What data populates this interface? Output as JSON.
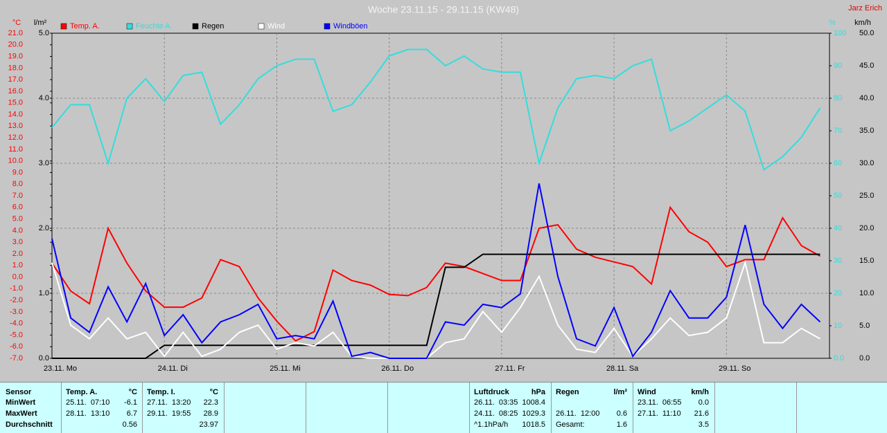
{
  "chart_data": {
    "type": "line",
    "title": "Woche 23.11.15 - 29.11.15 (KW48)",
    "author": "Jarz Erich",
    "y_label": "°C",
    "y2_label": "l/m²",
    "y3_label": "%",
    "y4_label": "km/h",
    "x": [
      0,
      4,
      8,
      12,
      16,
      20,
      24,
      28,
      32,
      36,
      40,
      44,
      48,
      52,
      56,
      60,
      64,
      68,
      72,
      76,
      80,
      84,
      88,
      92,
      96,
      100,
      104,
      108,
      112,
      116,
      120,
      124,
      128,
      132,
      136,
      140,
      144,
      148,
      152,
      156,
      160,
      164
    ],
    "xlim": [
      0,
      166
    ],
    "xticks": [
      {
        "value": 0,
        "label": "23.11. Mo"
      },
      {
        "value": 24,
        "label": "24.11. Di"
      },
      {
        "value": 48,
        "label": "25.11. Mi"
      },
      {
        "value": 72,
        "label": "26.11. Do"
      },
      {
        "value": 96,
        "label": "27.11. Fr"
      },
      {
        "value": 120,
        "label": "28.11. Sa"
      },
      {
        "value": 144,
        "label": "29.11. So"
      }
    ],
    "ylim": [
      -7,
      21
    ],
    "yticks": [
      {
        "value": -7,
        "label": "-7.0"
      },
      {
        "value": -6,
        "label": "-6.0"
      },
      {
        "value": -5,
        "label": "-5.0"
      },
      {
        "value": -4,
        "label": "-4.0"
      },
      {
        "value": -3,
        "label": "-3.0"
      },
      {
        "value": -2,
        "label": "-2.0"
      },
      {
        "value": -1,
        "label": "-1.0"
      },
      {
        "value": 0,
        "label": "0.0"
      },
      {
        "value": 1,
        "label": "1.0"
      },
      {
        "value": 2,
        "label": "2.0"
      },
      {
        "value": 3,
        "label": "3.0"
      },
      {
        "value": 4,
        "label": "4.0"
      },
      {
        "value": 5,
        "label": "5.0"
      },
      {
        "value": 6,
        "label": "6.0"
      },
      {
        "value": 7,
        "label": "7.0"
      },
      {
        "value": 8,
        "label": "8.0"
      },
      {
        "value": 9,
        "label": "9.0"
      },
      {
        "value": 10,
        "label": "10.0"
      },
      {
        "value": 11,
        "label": "11.0"
      },
      {
        "value": 12,
        "label": "12.0"
      },
      {
        "value": 13,
        "label": "13.0"
      },
      {
        "value": 14,
        "label": "14.0"
      },
      {
        "value": 15,
        "label": "15.0"
      },
      {
        "value": 16,
        "label": "16.0"
      },
      {
        "value": 17,
        "label": "17.0"
      },
      {
        "value": 18,
        "label": "18.0"
      },
      {
        "value": 19,
        "label": "19.0"
      },
      {
        "value": 20,
        "label": "20.0"
      },
      {
        "value": 21,
        "label": "21.0"
      }
    ],
    "y2lim": [
      0,
      5
    ],
    "y2ticks": [
      {
        "value": 0,
        "label": "0.0"
      },
      {
        "value": 1,
        "label": "1.0"
      },
      {
        "value": 2,
        "label": "2.0"
      },
      {
        "value": 3,
        "label": "3.0"
      },
      {
        "value": 4,
        "label": "4.0"
      },
      {
        "value": 5,
        "label": "5.0"
      }
    ],
    "y3lim": [
      0,
      100
    ],
    "y3ticks": [
      {
        "value": 0,
        "label": "0.0"
      },
      10,
      20,
      30,
      40,
      50,
      60,
      70,
      80,
      90,
      100
    ],
    "y4lim": [
      0,
      50
    ],
    "y4ticks": [
      {
        "value": 0,
        "label": "0.0"
      },
      {
        "value": 5,
        "label": "5.0"
      },
      {
        "value": 10,
        "label": "10.0"
      },
      {
        "value": 15,
        "label": "15.0"
      },
      {
        "value": 20,
        "label": "20.0"
      },
      {
        "value": 25,
        "label": "25.0"
      },
      {
        "value": 30,
        "label": "30.0"
      },
      {
        "value": 35,
        "label": "35.0"
      },
      {
        "value": 40,
        "label": "40.0"
      },
      {
        "value": 45,
        "label": "45.0"
      },
      {
        "value": 50,
        "label": "50.0"
      }
    ],
    "grid": true,
    "series": [
      {
        "name": "Temp. A.",
        "color": "#ff0000",
        "axis": "y",
        "values": [
          1.2,
          -1.2,
          -2.3,
          4.2,
          1.2,
          -1.2,
          -2.6,
          -2.6,
          -1.8,
          1.5,
          0.9,
          -1.8,
          -3.8,
          -5.5,
          -4.7,
          0.6,
          -0.3,
          -0.7,
          -1.5,
          -1.6,
          -0.9,
          1.2,
          0.9,
          0.3,
          -0.3,
          -0.3,
          4.2,
          4.5,
          2.4,
          1.7,
          1.3,
          0.9,
          -0.6,
          6.0,
          3.9,
          3.0,
          0.9,
          1.5,
          1.5,
          5.1,
          2.7,
          1.8
        ]
      },
      {
        "name": "Feuchte A.",
        "color": "#33dddd",
        "axis": "y3",
        "values": [
          71,
          78,
          78,
          60,
          80,
          86,
          79,
          87,
          88,
          72,
          78,
          86,
          90,
          92,
          92,
          76,
          78,
          85,
          93,
          95,
          95,
          90,
          93,
          89,
          88,
          88,
          60,
          77,
          86,
          87,
          86,
          90,
          92,
          70,
          73,
          77,
          81,
          76,
          58,
          62,
          68,
          77
        ]
      },
      {
        "name": "Regen",
        "color": "#000000",
        "axis": "y2",
        "values": [
          0,
          0,
          0,
          0,
          0,
          0,
          0.2,
          0.2,
          0.2,
          0.2,
          0.2,
          0.2,
          0.2,
          0.2,
          0.2,
          0.2,
          0.2,
          0.2,
          0.2,
          0.2,
          0.2,
          1.4,
          1.4,
          1.6,
          1.6,
          1.6,
          1.6,
          1.6,
          1.6,
          1.6,
          1.6,
          1.6,
          1.6,
          1.6,
          1.6,
          1.6,
          1.6,
          1.6,
          1.6,
          1.6,
          1.6,
          1.6
        ]
      },
      {
        "name": "Wind",
        "color": "#ffffff",
        "axis": "y4",
        "values": [
          14.7,
          5.1,
          3.0,
          6.2,
          3.0,
          4.0,
          0.3,
          4.0,
          0.3,
          1.4,
          4.0,
          5.1,
          1.4,
          2.4,
          1.9,
          4.0,
          0.3,
          0,
          0,
          0,
          0,
          2.4,
          3.0,
          7.2,
          4.0,
          7.8,
          12.6,
          5.1,
          1.4,
          0.9,
          4.6,
          0.3,
          3.0,
          6.2,
          3.5,
          4.0,
          6.2,
          14.7,
          2.4,
          2.4,
          4.6,
          3.0
        ]
      },
      {
        "name": "Windböen",
        "color": "#0000ff",
        "axis": "y4",
        "values": [
          18.4,
          6.2,
          4.0,
          11.0,
          5.6,
          11.5,
          3.5,
          6.7,
          2.4,
          5.6,
          6.7,
          8.3,
          3.0,
          3.5,
          3.0,
          8.8,
          0.3,
          0.9,
          0,
          0,
          0,
          5.6,
          5.1,
          8.3,
          7.8,
          9.9,
          26.9,
          12.6,
          3.0,
          1.9,
          7.8,
          0.3,
          4.0,
          10.4,
          6.2,
          6.2,
          9.4,
          20.5,
          8.3,
          4.6,
          8.3,
          5.6
        ]
      }
    ]
  },
  "stats": {
    "row_labels": [
      "Sensor",
      "MinWert",
      "MaxWert",
      "Durchschnitt"
    ],
    "groups": [
      {
        "name": "Temp. A.",
        "unit": "°C",
        "min": {
          "time": "25.11.  07:10",
          "value": "-6.1"
        },
        "max": {
          "time": "28.11.  13:10",
          "value": "6.7"
        },
        "avg": {
          "value": "0.56"
        }
      },
      {
        "name": "Temp. I.",
        "unit": "°C",
        "min": {
          "time": "27.11.  13:20",
          "value": "22.3"
        },
        "max": {
          "time": "29.11.  19:55",
          "value": "28.9"
        },
        "avg": {
          "value": "23.97"
        }
      },
      {
        "name": "Luftdruck",
        "unit": "hPa",
        "min": {
          "time": "26.11.  03:35",
          "value": "1008.4"
        },
        "max": {
          "time": "24.11.  08:25",
          "value": "1029.3"
        },
        "avg": {
          "time": "^1.1hPa/h",
          "value": "1018.5"
        }
      },
      {
        "name": "Regen",
        "unit": "l/m²",
        "max": {
          "time": "26.11.  12:00",
          "value": "0.6"
        },
        "avg": {
          "time": "Gesamt:",
          "value": "1.6"
        }
      },
      {
        "name": "Wind",
        "unit": "km/h",
        "min": {
          "time": "23.11.  06:55",
          "value": "0.0"
        },
        "max": {
          "time": "27.11.  11:10",
          "value": "21.6"
        },
        "avg": {
          "value": "3.5"
        }
      }
    ]
  }
}
